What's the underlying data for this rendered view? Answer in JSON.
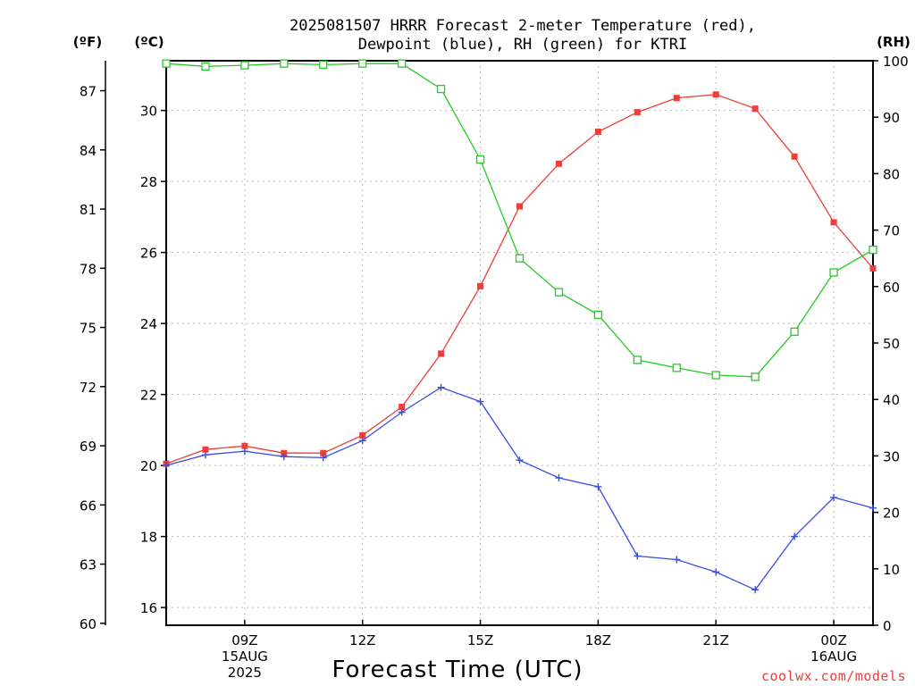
{
  "header": {
    "title_line1": "2025081507 HRRR Forecast 2-meter Temperature (red),",
    "title_line2": "Dewpoint (blue), RH (green) for KTRI"
  },
  "units": {
    "fahrenheit": "(ºF)",
    "celsius": "(ºC)",
    "rh": "(RH)"
  },
  "footer": {
    "xlabel": "Forecast Time (UTC)",
    "credit": "coolwx.com/models"
  },
  "colors": {
    "temperature": "#e8403a",
    "dewpoint": "#3a4fe0",
    "rh": "#22cc22"
  },
  "chart_data": {
    "type": "line",
    "title": "2025081507 HRRR Forecast 2-meter Temperature (red), Dewpoint (blue), RH (green) for KTRI",
    "xlabel": "Forecast Time (UTC)",
    "x_hours": [
      7,
      8,
      9,
      10,
      11,
      12,
      13,
      14,
      15,
      16,
      17,
      18,
      19,
      20,
      21,
      22,
      23,
      24,
      25
    ],
    "x_range_hours": [
      7,
      25
    ],
    "x_ticks": [
      {
        "hour": 9,
        "lines": [
          "09Z",
          "15AUG",
          "2025"
        ]
      },
      {
        "hour": 12,
        "lines": [
          "12Z"
        ]
      },
      {
        "hour": 15,
        "lines": [
          "15Z"
        ]
      },
      {
        "hour": 18,
        "lines": [
          "18Z"
        ]
      },
      {
        "hour": 21,
        "lines": [
          "21Z"
        ]
      },
      {
        "hour": 24,
        "lines": [
          "00Z",
          "16AUG"
        ]
      }
    ],
    "left_axis_celsius": {
      "range": [
        15.5,
        31.4
      ],
      "ticks": [
        16,
        18,
        20,
        22,
        24,
        26,
        28,
        30
      ]
    },
    "left_axis_fahrenheit": {
      "ticks": [
        60,
        63,
        66,
        69,
        72,
        75,
        78,
        81,
        84,
        87
      ]
    },
    "right_axis_rh": {
      "range": [
        0,
        100
      ],
      "ticks": [
        0,
        10,
        20,
        30,
        40,
        50,
        60,
        70,
        80,
        90,
        100
      ]
    },
    "grid": true,
    "series": [
      {
        "name": "Temperature",
        "axis": "celsius",
        "marker": "filled-square",
        "values": [
          20.05,
          20.45,
          20.55,
          20.35,
          20.35,
          20.85,
          21.65,
          23.15,
          25.05,
          27.3,
          28.5,
          29.4,
          29.95,
          30.35,
          30.45,
          30.05,
          28.7,
          26.85,
          25.55
        ]
      },
      {
        "name": "Dewpoint",
        "axis": "celsius",
        "marker": "plus",
        "values": [
          20.0,
          20.3,
          20.4,
          20.25,
          20.22,
          20.7,
          21.5,
          22.2,
          21.8,
          20.15,
          19.65,
          19.4,
          17.45,
          17.35,
          17.0,
          16.5,
          18.0,
          19.1,
          18.8
        ]
      },
      {
        "name": "RH",
        "axis": "rh",
        "marker": "open-square",
        "values": [
          99.5,
          99,
          99.2,
          99.5,
          99.3,
          99.5,
          99.5,
          95,
          82.5,
          65,
          59,
          55,
          47,
          45.6,
          44.3,
          44,
          52,
          62.5,
          66.5
        ]
      }
    ]
  }
}
